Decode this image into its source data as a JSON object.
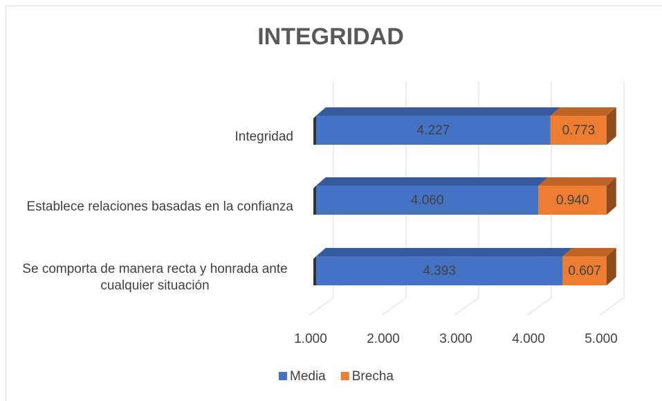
{
  "chart_data": {
    "type": "bar3d_stacked_horizontal",
    "title": "INTEGRIDAD",
    "categories": [
      "Integridad",
      "Establece relaciones basadas en la confianza",
      "Se comporta de manera recta y honrada ante cualquier situación"
    ],
    "series": [
      {
        "name": "Media",
        "color": "#4472c4",
        "values": [
          4.227,
          4.06,
          4.393
        ],
        "value_labels": [
          "4.227",
          "4.060",
          "4.393"
        ]
      },
      {
        "name": "Brecha",
        "color": "#ed7d31",
        "values": [
          0.773,
          0.94,
          0.607
        ],
        "value_labels": [
          "0.773",
          "0.940",
          "0.607"
        ]
      }
    ],
    "xlim": [
      1,
      5
    ],
    "xticks": [
      {
        "value": 1,
        "label": "1.000"
      },
      {
        "value": 2,
        "label": "2.000"
      },
      {
        "value": 3,
        "label": "3.000"
      },
      {
        "value": 4,
        "label": "4.000"
      },
      {
        "value": 5,
        "label": "5.000"
      }
    ],
    "grid": true,
    "legend": "bottom"
  }
}
